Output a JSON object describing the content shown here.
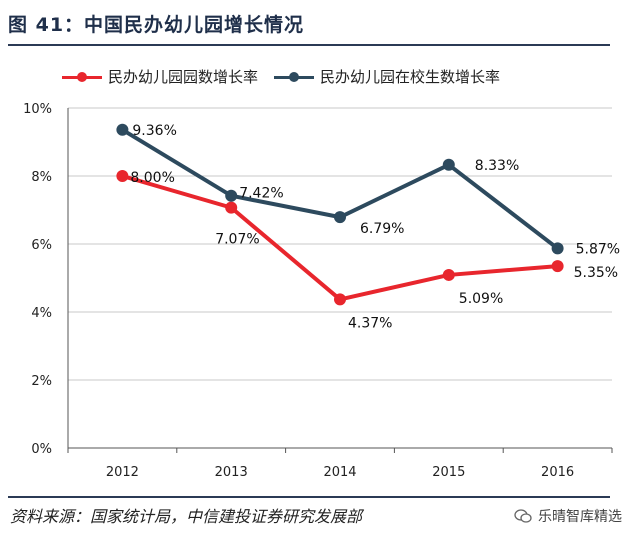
{
  "header": {
    "title": "图 41：中国民办幼儿园增长情况"
  },
  "footer": {
    "source": "资料来源：国家统计局，中信建投证券研究发展部",
    "watermark": "乐晴智库精选"
  },
  "colors": {
    "series1": "#e8262d",
    "series2": "#2d4a5e",
    "grid": "#c8c8c8",
    "axis": "#555555"
  },
  "chart_data": {
    "type": "line",
    "x": [
      "2012",
      "2013",
      "2014",
      "2015",
      "2016"
    ],
    "y_ticks": [
      "0%",
      "2%",
      "4%",
      "6%",
      "8%",
      "10%"
    ],
    "ylim": [
      0,
      10
    ],
    "grid": true,
    "legend": "top",
    "series": [
      {
        "name": "民办幼儿园园数增长率",
        "values": [
          8.0,
          7.07,
          4.37,
          5.09,
          5.35
        ],
        "labels": [
          "8.00%",
          "7.07%",
          "4.37%",
          "5.09%",
          "5.35%"
        ]
      },
      {
        "name": "民办幼儿园在校生数增长率",
        "values": [
          9.36,
          7.42,
          6.79,
          8.33,
          5.87
        ],
        "labels": [
          "9.36%",
          "7.42%",
          "6.79%",
          "8.33%",
          "5.87%"
        ]
      }
    ]
  }
}
